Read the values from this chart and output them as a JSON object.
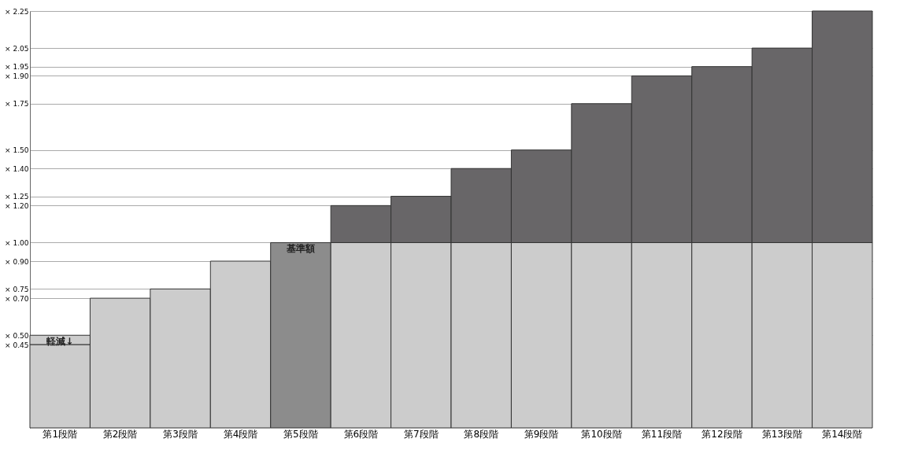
{
  "chart_data": {
    "type": "bar",
    "stacked": true,
    "categories": [
      "第1段階",
      "第2段階",
      "第3段階",
      "第4段階",
      "第5段階",
      "第6段階",
      "第7段階",
      "第8段階",
      "第9段階",
      "第10段階",
      "第11段階",
      "第12段階",
      "第13段階",
      "第14段階"
    ],
    "series": [
      {
        "colors": [
          "#cccccc",
          "#cccccc",
          "#cccccc",
          "#cccccc",
          "#8c8c8c",
          "#cccccc",
          "#cccccc",
          "#cccccc",
          "#cccccc",
          "#cccccc",
          "#cccccc",
          "#cccccc",
          "#cccccc",
          "#cccccc"
        ],
        "values": [
          0.45,
          0.7,
          0.75,
          0.9,
          1.0,
          1.0,
          1.0,
          1.0,
          1.0,
          1.0,
          1.0,
          1.0,
          1.0,
          1.0
        ]
      },
      {
        "color": "#cccccc",
        "values": [
          0.05,
          null,
          null,
          null,
          null,
          null,
          null,
          null,
          null,
          null,
          null,
          null,
          null,
          null
        ]
      },
      {
        "color": "#686668",
        "values": [
          null,
          null,
          null,
          null,
          null,
          0.2,
          0.25,
          0.4,
          0.5,
          0.75,
          0.9,
          0.95,
          1.05,
          1.25
        ]
      }
    ],
    "ylim": [
      0,
      2.25
    ],
    "yticks": [
      {
        "value": 0.45,
        "label": "× 0.45"
      },
      {
        "value": 0.5,
        "label": "× 0.50"
      },
      {
        "value": 0.7,
        "label": "× 0.70"
      },
      {
        "value": 0.75,
        "label": "× 0.75"
      },
      {
        "value": 0.9,
        "label": "× 0.90"
      },
      {
        "value": 1.0,
        "label": "× 1.00"
      },
      {
        "value": 1.2,
        "label": "× 1.20"
      },
      {
        "value": 1.25,
        "label": "× 1.25"
      },
      {
        "value": 1.4,
        "label": "× 1.40"
      },
      {
        "value": 1.5,
        "label": "× 1.50"
      },
      {
        "value": 1.75,
        "label": "× 1.75"
      },
      {
        "value": 1.9,
        "label": "× 1.90"
      },
      {
        "value": 1.95,
        "label": "× 1.95"
      },
      {
        "value": 2.05,
        "label": "× 2.05"
      },
      {
        "value": 2.25,
        "label": "× 2.25"
      }
    ],
    "grid": "y",
    "annotations": [
      {
        "text": "基準額",
        "x": "第5段階",
        "y": 1.0
      },
      {
        "text": "軽減↓",
        "x": "第1段階",
        "y": 0.5
      }
    ]
  }
}
